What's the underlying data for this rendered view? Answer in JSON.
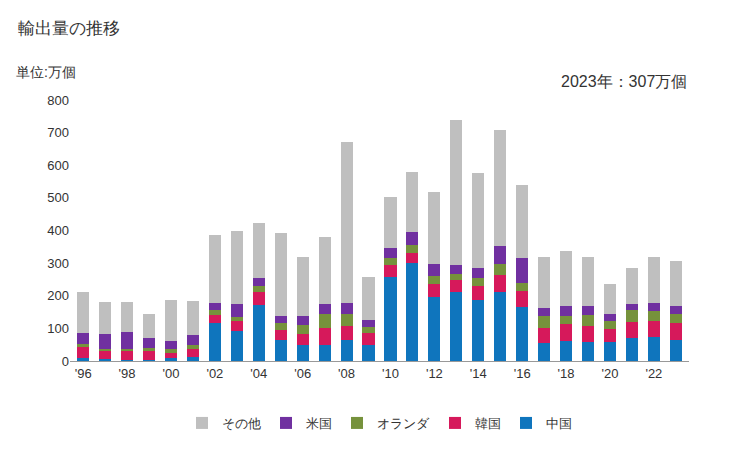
{
  "chart_data": {
    "type": "bar",
    "title": "輸出量の推移",
    "y_label": "単位:万個",
    "annotations": [
      {
        "text": "2023年：307万個"
      }
    ],
    "stacked": true,
    "grid": false,
    "legend": "bottom",
    "categories": [
      "'96",
      null,
      "'98",
      null,
      "'00",
      null,
      "'02",
      null,
      "'04",
      null,
      "'06",
      null,
      "'08",
      null,
      "'10",
      null,
      "'12",
      null,
      "'14",
      null,
      "'16",
      null,
      "'18",
      null,
      "'20",
      null,
      "'22",
      null
    ],
    "ylim": [
      0,
      800
    ],
    "yticks": [
      0,
      100,
      200,
      300,
      400,
      500,
      600,
      700,
      800
    ],
    "series": [
      {
        "name": "中国",
        "color": "#0f75bd",
        "values": [
          8,
          5,
          3,
          3,
          8,
          12,
          115,
          92,
          172,
          65,
          48,
          50,
          65,
          50,
          258,
          300,
          195,
          213,
          188,
          210,
          165,
          55,
          60,
          57,
          57,
          70,
          73,
          63
        ]
      },
      {
        "name": "韓国",
        "color": "#d6195b",
        "values": [
          35,
          25,
          27,
          27,
          17,
          25,
          25,
          30,
          38,
          30,
          35,
          50,
          43,
          35,
          37,
          32,
          40,
          35,
          42,
          55,
          50,
          47,
          52,
          50,
          40,
          50,
          50,
          52
        ]
      },
      {
        "name": "オランダ",
        "color": "#76923c",
        "values": [
          10,
          8,
          8,
          10,
          12,
          13,
          15,
          13,
          20,
          20,
          27,
          45,
          35,
          18,
          22,
          25,
          27,
          20,
          25,
          32,
          25,
          37,
          27,
          33,
          27,
          35,
          30,
          30
        ]
      },
      {
        "name": "米国",
        "color": "#7030a0",
        "values": [
          32,
          45,
          50,
          30,
          25,
          30,
          22,
          40,
          25,
          23,
          27,
          30,
          35,
          22,
          28,
          38,
          35,
          27,
          30,
          55,
          75,
          25,
          30,
          28,
          20,
          20,
          25,
          25
        ]
      },
      {
        "name": "その他",
        "color": "#bfbfbf",
        "values": [
          128,
          97,
          92,
          73,
          125,
          103,
          208,
          223,
          168,
          255,
          183,
          205,
          494,
          132,
          158,
          183,
          221,
          443,
          290,
          356,
          223,
          156,
          168,
          152,
          93,
          110,
          142,
          137
        ]
      }
    ]
  }
}
